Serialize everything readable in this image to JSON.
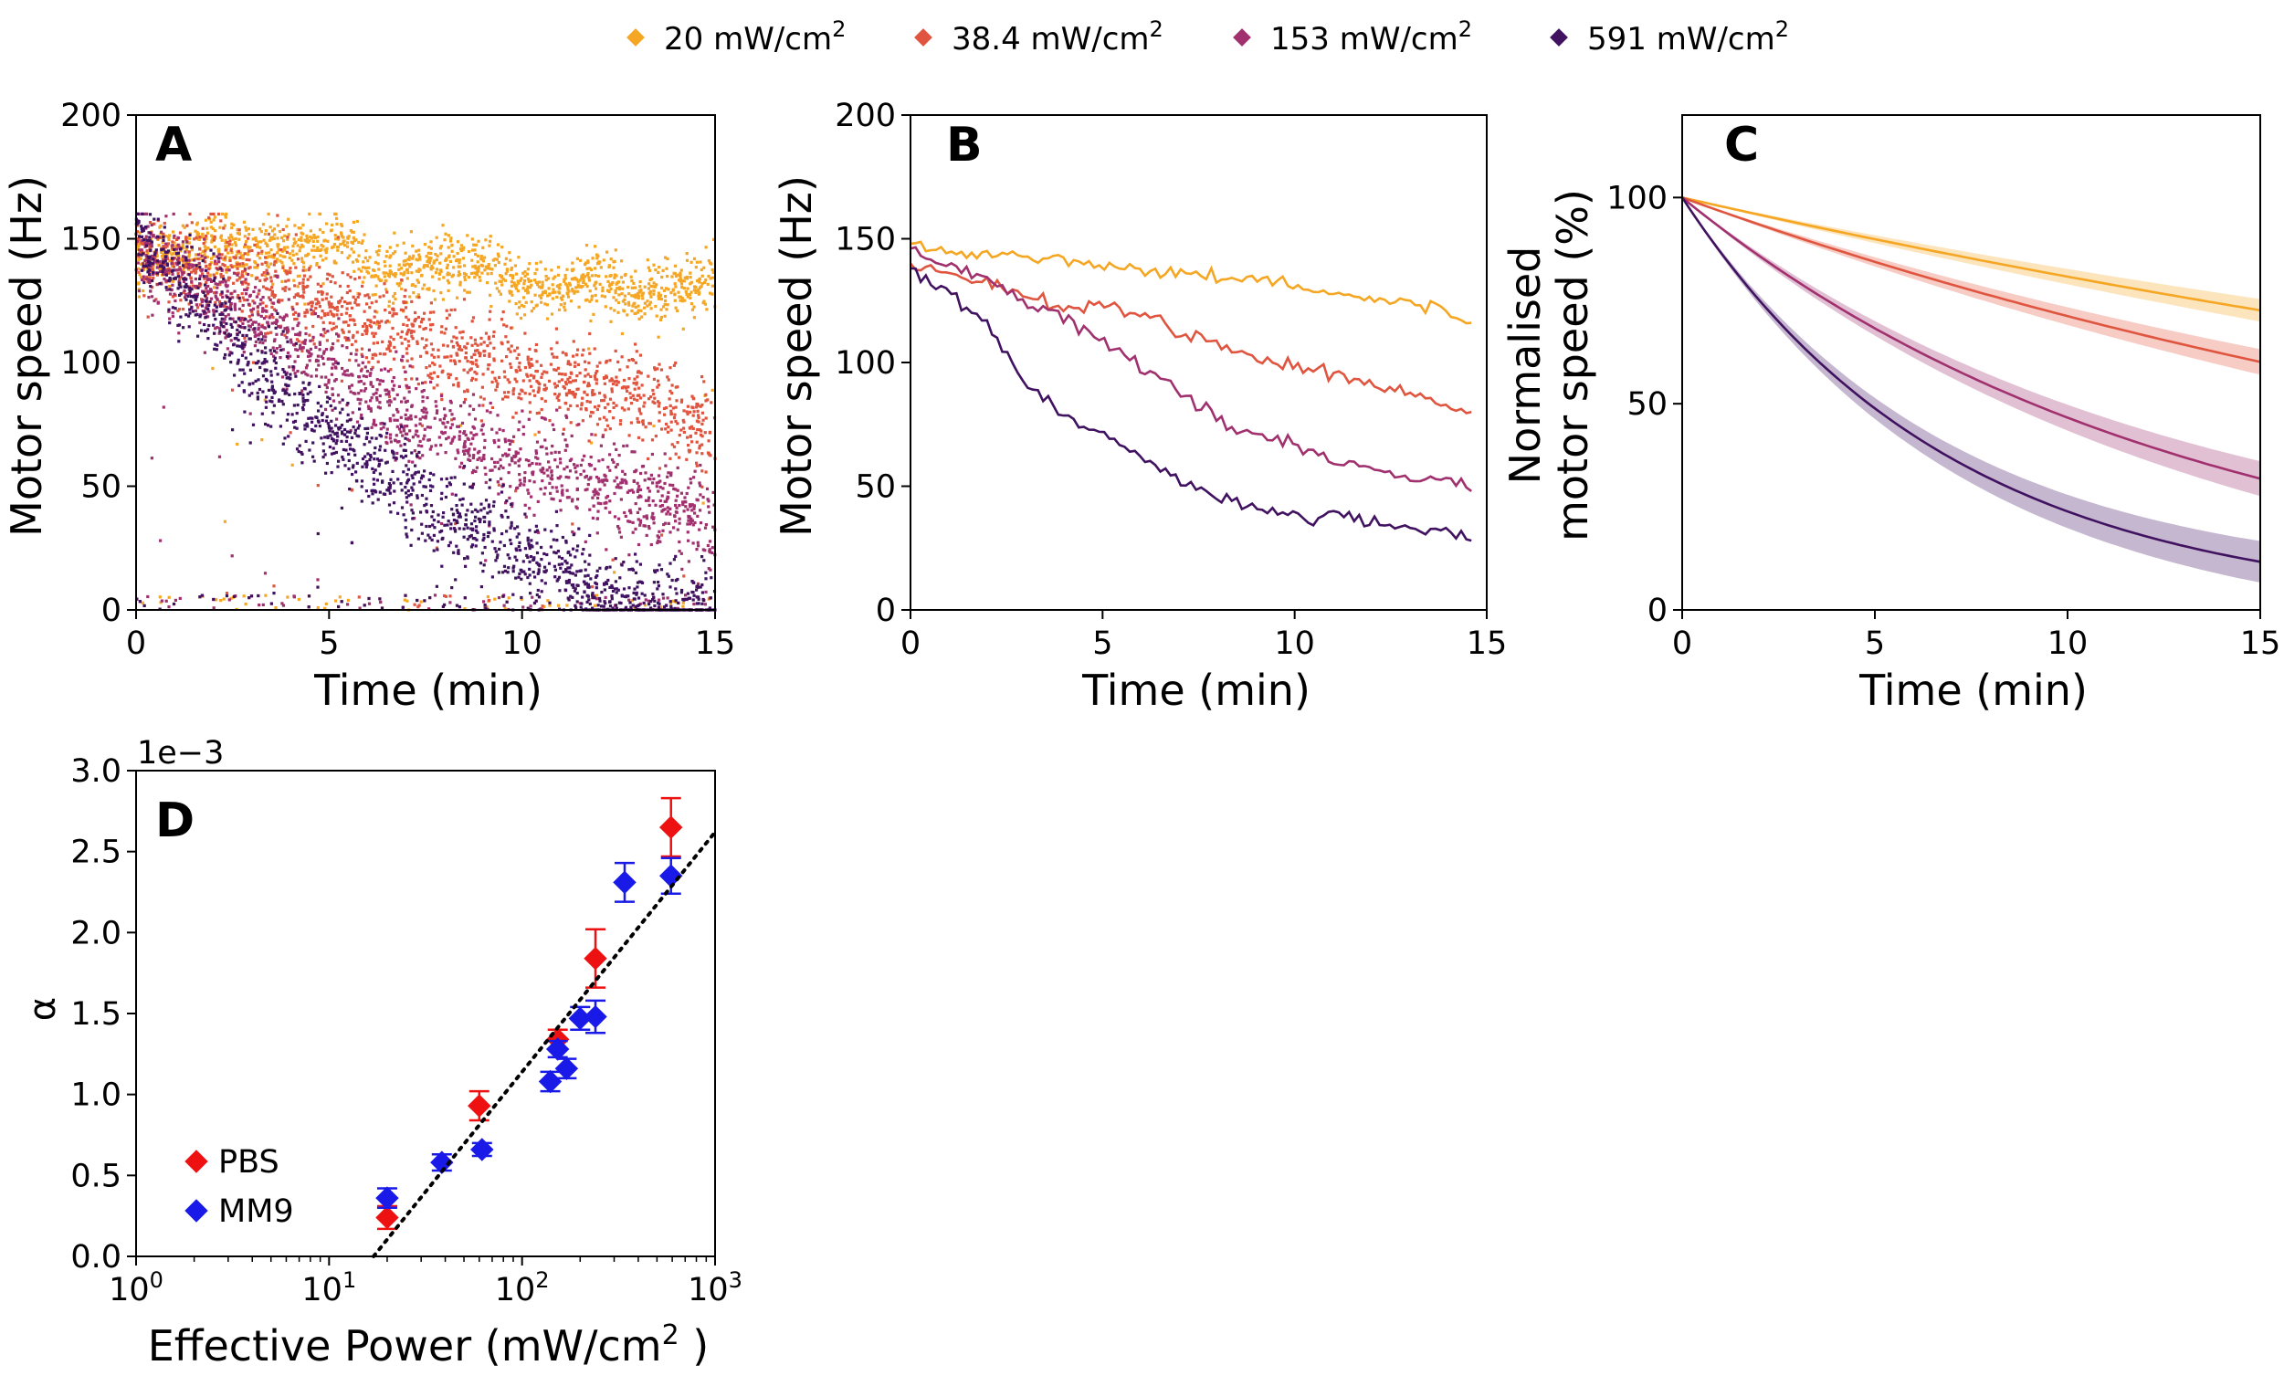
{
  "legend": {
    "items": [
      {
        "label": "20 mW/cm",
        "sup": "2",
        "color": "#f5a623"
      },
      {
        "label": "38.4 mW/cm",
        "sup": "2",
        "color": "#e0553f"
      },
      {
        "label": "153 mW/cm",
        "sup": "2",
        "color": "#a0306e"
      },
      {
        "label": "591 mW/cm",
        "sup": "2",
        "color": "#401260"
      }
    ]
  },
  "chart_data": [
    {
      "panel": "A",
      "type": "scatter",
      "title": "",
      "xlabel": "Time (min)",
      "ylabel": "Motor speed (Hz)",
      "xlim": [
        0,
        15
      ],
      "ylim": [
        0,
        200
      ],
      "xticks": [
        0,
        5,
        10,
        15
      ],
      "yticks": [
        0,
        50,
        100,
        150,
        200
      ],
      "description_of_series": "dense raw speed traces per power level",
      "series": [
        {
          "name": "20 mW/cm2",
          "color": "#f5a623",
          "t": [
            0,
            1,
            2,
            3,
            4,
            5,
            5.5,
            6,
            7,
            8,
            9,
            10,
            11,
            12,
            13,
            14,
            15
          ],
          "v": [
            140,
            145,
            148,
            145,
            145,
            148,
            150,
            135,
            138,
            138,
            140,
            132,
            130,
            135,
            126,
            130,
            133
          ]
        },
        {
          "name": "38.4 mW/cm2",
          "color": "#e0553f",
          "t": [
            0,
            1,
            2,
            3,
            4,
            5,
            6,
            7,
            8,
            9,
            10,
            11,
            12,
            13,
            14,
            15
          ],
          "v": [
            142,
            140,
            138,
            133,
            128,
            122,
            117,
            110,
            106,
            100,
            98,
            92,
            88,
            85,
            78,
            70
          ]
        },
        {
          "name": "153 mW/cm2",
          "color": "#a0306e",
          "t": [
            0,
            1,
            2,
            3,
            4,
            5,
            6,
            7,
            8,
            9,
            10,
            11,
            12,
            13,
            14,
            15
          ],
          "v": [
            145,
            138,
            128,
            118,
            108,
            98,
            88,
            80,
            72,
            65,
            60,
            55,
            50,
            48,
            40,
            30
          ]
        },
        {
          "name": "591 mW/cm2",
          "color": "#401260",
          "t": [
            0,
            1,
            2,
            3,
            4,
            5,
            6,
            7,
            8,
            9,
            10,
            11,
            11.5,
            12,
            13,
            14,
            15
          ],
          "v": [
            150,
            135,
            122,
            100,
            85,
            72,
            63,
            50,
            38,
            33,
            25,
            18,
            10,
            5,
            0,
            0,
            0
          ]
        }
      ]
    },
    {
      "panel": "B",
      "type": "line",
      "title": "",
      "xlabel": "Time (min)",
      "ylabel": "Motor speed (Hz)",
      "xlim": [
        0,
        15
      ],
      "ylim": [
        0,
        200
      ],
      "xticks": [
        0,
        5,
        10,
        15
      ],
      "yticks": [
        0,
        50,
        100,
        150,
        200
      ],
      "series": [
        {
          "name": "20 mW/cm2",
          "color": "#f5a623",
          "t": [
            0,
            1,
            2,
            3,
            4,
            5,
            6,
            7,
            8,
            9,
            10,
            11,
            12,
            13,
            14,
            14.6
          ],
          "v": [
            148,
            145,
            143,
            144,
            141,
            140,
            138,
            136,
            134,
            135,
            131,
            128,
            126,
            124,
            120,
            116
          ]
        },
        {
          "name": "38.4 mW/cm2",
          "color": "#e0553f",
          "t": [
            0,
            1,
            2,
            3,
            4,
            5,
            6,
            7,
            8,
            9,
            10,
            11,
            12,
            13,
            14,
            14.6
          ],
          "v": [
            140,
            136,
            132,
            128,
            122,
            124,
            120,
            112,
            108,
            102,
            98,
            95,
            91,
            88,
            82,
            80
          ]
        },
        {
          "name": "153 mW/cm2",
          "color": "#a0306e",
          "t": [
            0,
            1,
            2,
            3,
            4,
            5,
            6,
            7,
            8,
            9,
            10,
            11,
            12,
            13,
            14,
            14.6
          ],
          "v": [
            146,
            140,
            134,
            125,
            118,
            108,
            98,
            88,
            78,
            70,
            66,
            60,
            57,
            54,
            52,
            48
          ]
        },
        {
          "name": "591 mW/cm2",
          "color": "#401260",
          "t": [
            0,
            1,
            2,
            3,
            4,
            5,
            6,
            7,
            8,
            9,
            10,
            10.5,
            11,
            12,
            13,
            14,
            14.6
          ],
          "v": [
            138,
            128,
            115,
            92,
            78,
            70,
            62,
            52,
            45,
            42,
            38,
            35,
            40,
            35,
            33,
            33,
            28
          ]
        }
      ]
    },
    {
      "panel": "C",
      "type": "line",
      "title": "",
      "xlabel": "Time (min)",
      "ylabel": "Normalised motor speed (%)",
      "xlim": [
        0,
        15
      ],
      "ylim": [
        0,
        120
      ],
      "xticks": [
        0,
        5,
        10,
        15
      ],
      "yticks": [
        0,
        50,
        100
      ],
      "series": [
        {
          "name": "20 mW/cm2",
          "color": "#f5a623",
          "decay_rate_per_min": 0.0213,
          "band_frac": 0.045
        },
        {
          "name": "38.4 mW/cm2",
          "color": "#e0553f",
          "decay_rate_per_min": 0.0339,
          "band_frac": 0.04
        },
        {
          "name": "153 mW/cm2",
          "color": "#a0306e",
          "decay_rate_per_min": 0.0763,
          "band_frac": 0.04
        },
        {
          "name": "591 mW/cm2",
          "color": "#401260",
          "decay_rate_per_min": 0.1432,
          "band_frac": 0.04
        }
      ]
    },
    {
      "panel": "D",
      "type": "scatter",
      "title": "",
      "xlabel": "Effective Power (mW/cm",
      "xlabel_sup": "2",
      "xlabel_end": " )",
      "ylabel": "α",
      "offset_label": "1e−3",
      "xscale": "log",
      "xlim": [
        1,
        1000
      ],
      "ylim": [
        0,
        3.0
      ],
      "xticks": [
        1,
        10,
        100,
        1000
      ],
      "xtick_labels": [
        {
          "base": "10",
          "exp": "0"
        },
        {
          "base": "10",
          "exp": "1"
        },
        {
          "base": "10",
          "exp": "2"
        },
        {
          "base": "10",
          "exp": "3"
        }
      ],
      "yticks": [
        0.0,
        0.5,
        1.0,
        1.5,
        2.0,
        2.5,
        3.0
      ],
      "ytick_labels": [
        "0.0",
        "0.5",
        "1.0",
        "1.5",
        "2.0",
        "2.5",
        "3.0"
      ],
      "fit_line": {
        "x": [
          17,
          1000
        ],
        "y": [
          0.0,
          2.62
        ],
        "style": "dotted",
        "color": "#000000"
      },
      "series": [
        {
          "name": "PBS",
          "color": "#ee1111",
          "points": [
            {
              "x": 20,
              "y": 0.24,
              "err": 0.07
            },
            {
              "x": 60,
              "y": 0.93,
              "err": 0.09
            },
            {
              "x": 153,
              "y": 1.34,
              "err": 0.06
            },
            {
              "x": 240,
              "y": 1.84,
              "err": 0.18
            },
            {
              "x": 591,
              "y": 2.65,
              "err": 0.18
            }
          ]
        },
        {
          "name": "MM9",
          "color": "#1a1ae8",
          "points": [
            {
              "x": 20,
              "y": 0.36,
              "err": 0.06
            },
            {
              "x": 38.4,
              "y": 0.58,
              "err": 0.05
            },
            {
              "x": 62,
              "y": 0.66,
              "err": 0.04
            },
            {
              "x": 140,
              "y": 1.08,
              "err": 0.06
            },
            {
              "x": 153,
              "y": 1.28,
              "err": 0.05
            },
            {
              "x": 170,
              "y": 1.16,
              "err": 0.06
            },
            {
              "x": 200,
              "y": 1.47,
              "err": 0.07
            },
            {
              "x": 240,
              "y": 1.48,
              "err": 0.1
            },
            {
              "x": 340,
              "y": 2.31,
              "err": 0.12
            },
            {
              "x": 591,
              "y": 2.35,
              "err": 0.11
            }
          ]
        }
      ]
    }
  ]
}
